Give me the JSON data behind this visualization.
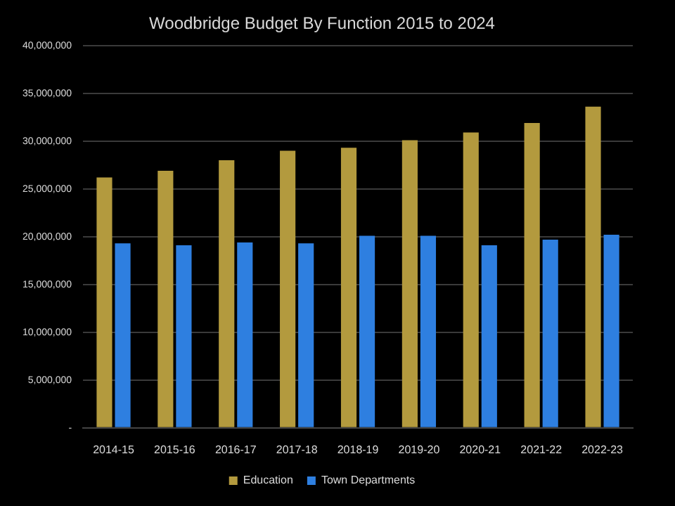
{
  "chart_data": {
    "type": "bar",
    "title": "Woodbridge Budget By Function 2015 to 2024",
    "categories": [
      "2014-15",
      "2015-16",
      "2016-17",
      "2017-18",
      "2018-19",
      "2019-20",
      "2020-21",
      "2021-22",
      "2022-23"
    ],
    "series": [
      {
        "name": "Education",
        "color": "#b39a3e",
        "values": [
          26200000,
          26900000,
          28000000,
          29000000,
          29300000,
          30100000,
          30900000,
          31900000,
          33600000
        ]
      },
      {
        "name": "Town Departments",
        "color": "#2e7fe0",
        "values": [
          19300000,
          19100000,
          19400000,
          19300000,
          20100000,
          20100000,
          19100000,
          19700000,
          20200000
        ]
      }
    ],
    "ylim": [
      0,
      40000000
    ],
    "yticks": [
      {
        "value": 0,
        "label": "-"
      },
      {
        "value": 5000000,
        "label": "5,000,000"
      },
      {
        "value": 10000000,
        "label": "10,000,000"
      },
      {
        "value": 15000000,
        "label": "15,000,000"
      },
      {
        "value": 20000000,
        "label": "20,000,000"
      },
      {
        "value": 25000000,
        "label": "25,000,000"
      },
      {
        "value": 30000000,
        "label": "30,000,000"
      },
      {
        "value": 35000000,
        "label": "35,000,000"
      },
      {
        "value": 40000000,
        "label": "40,000,000"
      }
    ],
    "grid": "y",
    "legend": "bottom"
  }
}
